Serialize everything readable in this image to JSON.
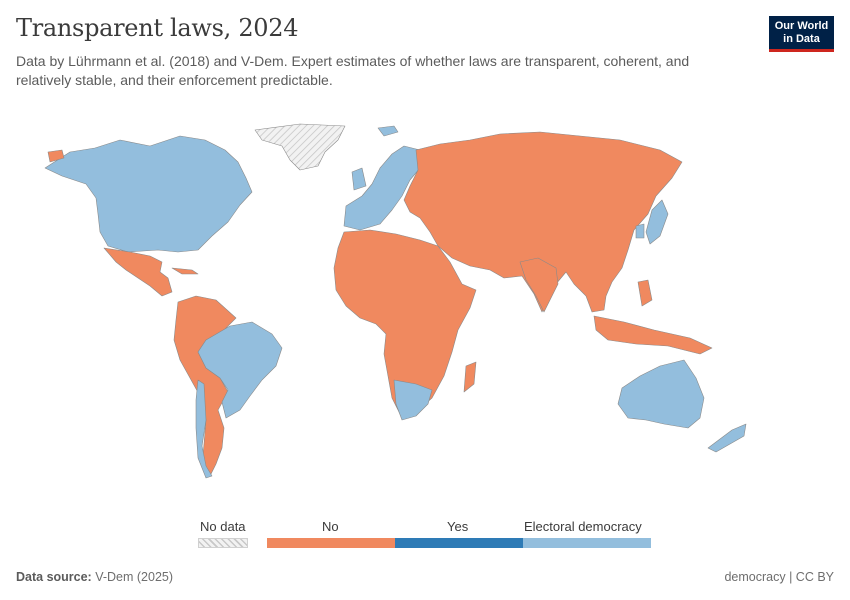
{
  "header": {
    "title": "Transparent laws, 2024",
    "subtitle": "Data by Lührmann et al. (2018) and V-Dem. Expert estimates of whether laws are transparent, coherent, and relatively stable, and their enforcement predictable."
  },
  "logo": {
    "line1": "Our World",
    "line2": "in Data"
  },
  "legend": {
    "no_data": "No data",
    "categories": [
      {
        "label": "No",
        "color": "#f0895f"
      },
      {
        "label": "Yes",
        "color": "#2e7bb6"
      },
      {
        "label": "Electoral democracy",
        "color": "#93bedd"
      }
    ]
  },
  "colors": {
    "no": "#f0895f",
    "yes": "#2e7bb6",
    "democracy": "#93bedd",
    "no_data": "#e6e6e6",
    "border": "#8a8a8a"
  },
  "footer": {
    "source_label": "Data source:",
    "source_value": "V-Dem (2025)",
    "right": "democracy | CC BY"
  }
}
